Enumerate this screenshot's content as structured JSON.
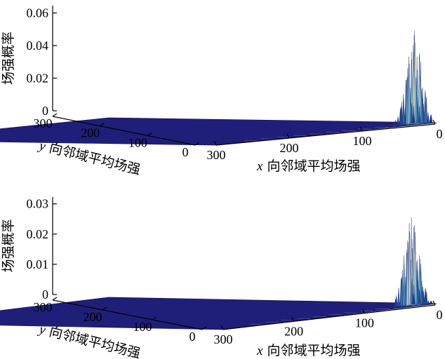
{
  "chart_data": [
    {
      "type": "surface",
      "zlabel": "场强概率",
      "xlabel_var": "x",
      "xlabel_text": " 向邻域平均场强",
      "ylabel_var": "y",
      "ylabel_text": " 向邻域平均场强",
      "z_ticks": [
        "0",
        "0.02",
        "0.04",
        "0.06"
      ],
      "zlim": [
        0,
        0.06
      ],
      "x_ticks": [
        "0",
        "100",
        "200",
        "300"
      ],
      "y_ticks": [
        "0",
        "100",
        "200",
        "300"
      ],
      "xlim": [
        0,
        300
      ],
      "ylim": [
        0,
        300
      ],
      "peak": {
        "x": 18,
        "y": 8,
        "z": 0.057
      },
      "colormap": [
        "#1f1f7a",
        "#2c5fa8",
        "#59a7c9",
        "#b5dfe0",
        "#f3f0c0"
      ]
    },
    {
      "type": "surface",
      "zlabel": "场强概率",
      "xlabel_var": "x",
      "xlabel_text": " 向邻域平均场强",
      "ylabel_var": "y",
      "ylabel_text": " 向邻域平均场强",
      "z_ticks": [
        "0",
        "0.01",
        "0.02",
        "0.03"
      ],
      "zlim": [
        0,
        0.03
      ],
      "x_ticks": [
        "0",
        "100",
        "200",
        "300"
      ],
      "y_ticks": [
        "0",
        "100",
        "200",
        "300"
      ],
      "xlim": [
        0,
        300
      ],
      "ylim": [
        0,
        300
      ],
      "peak": {
        "x": 20,
        "y": 10,
        "z": 0.029
      },
      "colormap": [
        "#1f1f7a",
        "#2c5fa8",
        "#59a7c9",
        "#b5dfe0",
        "#f3f0c0"
      ]
    }
  ]
}
